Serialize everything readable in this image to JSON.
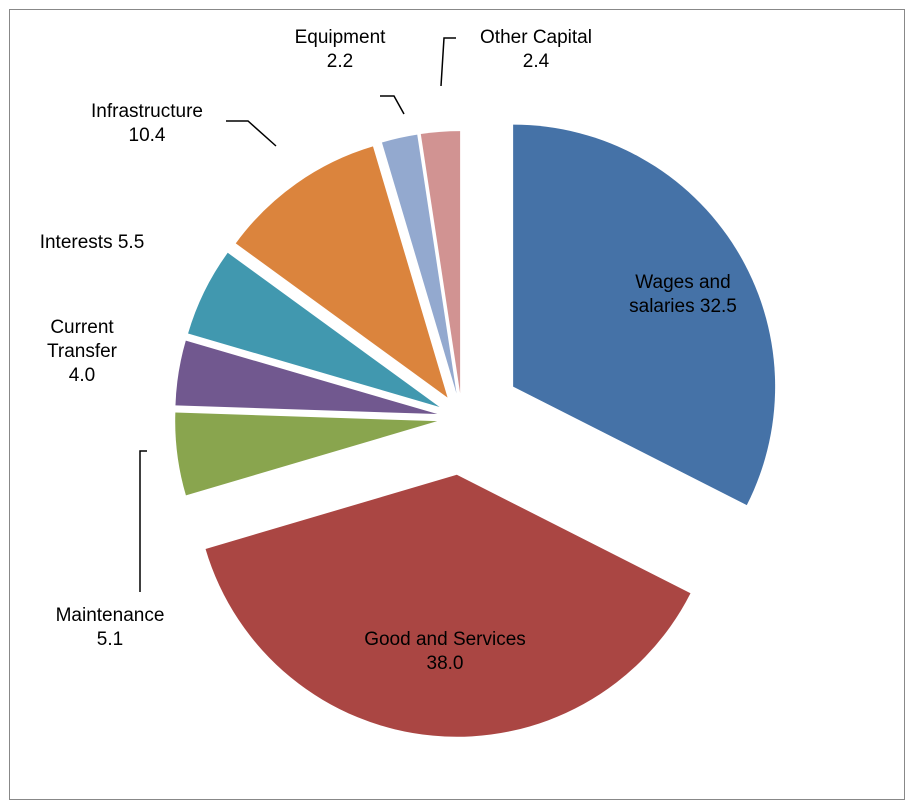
{
  "chart_data": {
    "type": "pie",
    "categories": [
      "Wages and salaries",
      "Good and Services",
      "Maintenance",
      "Current Transfer",
      "Interests",
      "Infrastructure",
      "Equipment",
      "Other Capital"
    ],
    "values": [
      32.5,
      38.0,
      5.1,
      4.0,
      5.5,
      10.4,
      2.2,
      2.4
    ],
    "value_labels": [
      "32.5",
      "38.0",
      "5.1",
      "4.0",
      "5.5",
      "10.4",
      "2.2",
      "2.4"
    ],
    "colors": [
      "#4572a7",
      "#aa4643",
      "#89a54e",
      "#71588f",
      "#4198af",
      "#db843d",
      "#93a9cf",
      "#d19392"
    ]
  }
}
